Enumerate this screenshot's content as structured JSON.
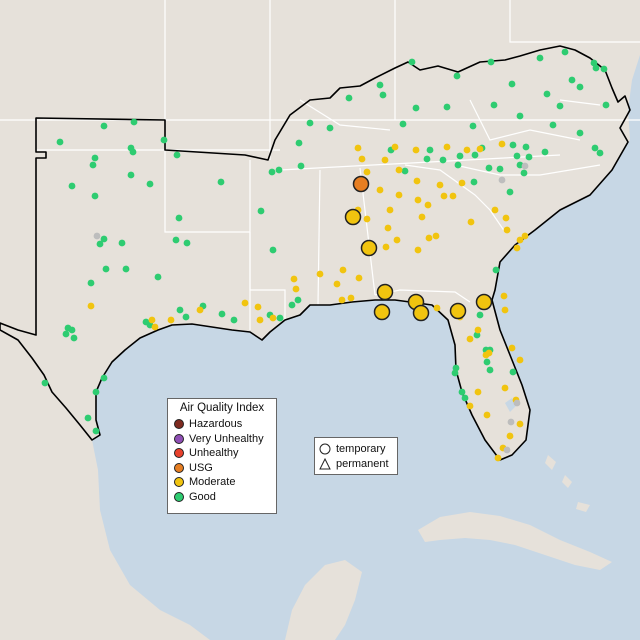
{
  "legend": {
    "title": "Air Quality Index",
    "items": [
      {
        "label": "Hazardous",
        "color": "#7e2a1f"
      },
      {
        "label": "Very Unhealthy",
        "color": "#8f4fb5"
      },
      {
        "label": "Unhealthy",
        "color": "#e8412c"
      },
      {
        "label": "USG",
        "color": "#e67e22"
      },
      {
        "label": "Moderate",
        "color": "#f1c40f"
      },
      {
        "label": "Good",
        "color": "#2ecc71"
      }
    ]
  },
  "shape_legend": {
    "temporary": "temporary",
    "permanent": "permanent"
  },
  "colors": {
    "land": "#e4dfd8",
    "water": "#c7d7e5",
    "state_border": "#ffffff",
    "region_border": "#000000",
    "no_data": "#bdbdbd"
  }
}
